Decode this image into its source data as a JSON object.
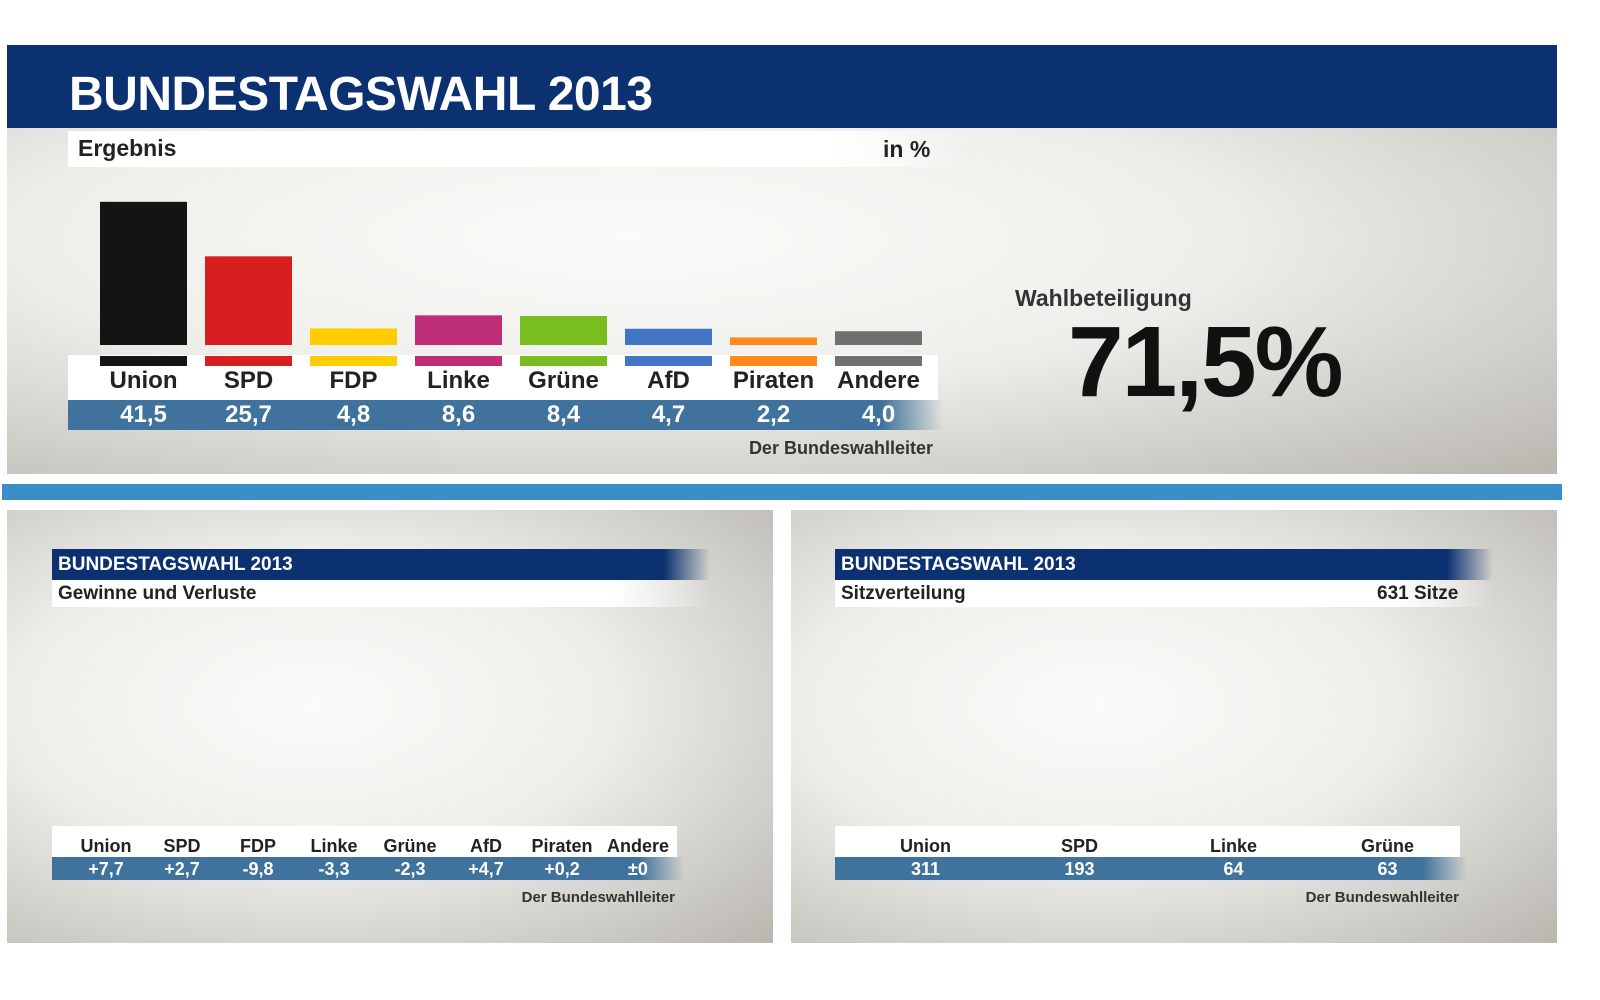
{
  "title": "BUNDESTAGSWAHL 2013",
  "source": "Der Bundeswahlleiter",
  "colors": {
    "Union": "#141414",
    "SPD": "#d81e1e",
    "FDP": "#ffcc00",
    "Linke": "#be2f78",
    "Grüne": "#78be1e",
    "AfD": "#4275c6",
    "Piraten": "#ff8a1a",
    "Andere": "#707070"
  },
  "turnout": {
    "label": "Wahlbeteiligung",
    "value": "71,5%"
  },
  "chart_data": [
    {
      "type": "bar",
      "title": "Ergebnis",
      "unit": "in %",
      "categories": [
        "Union",
        "SPD",
        "FDP",
        "Linke",
        "Grüne",
        "AfD",
        "Piraten",
        "Andere"
      ],
      "values": [
        41.5,
        25.7,
        4.8,
        8.6,
        8.4,
        4.7,
        2.2,
        4.0
      ],
      "labels": [
        "41,5",
        "25,7",
        "4,8",
        "8,6",
        "8,4",
        "4,7",
        "2,2",
        "4,0"
      ]
    },
    {
      "type": "bar",
      "title": "Gewinne und Verluste",
      "header": "BUNDESTAGSWAHL 2013",
      "categories": [
        "Union",
        "SPD",
        "FDP",
        "Linke",
        "Grüne",
        "AfD",
        "Piraten",
        "Andere"
      ],
      "values": [
        7.7,
        2.7,
        -9.8,
        -3.3,
        -2.3,
        4.7,
        0.2,
        0
      ],
      "labels": [
        "+7,7",
        "+2,7",
        "-9,8",
        "-3,3",
        "-2,3",
        "+4,7",
        "+0,2",
        "±0"
      ]
    },
    {
      "type": "pie",
      "subtype": "hemicycle",
      "title": "Sitzverteilung",
      "header": "BUNDESTAGSWAHL 2013",
      "total_label": "631 Sitze",
      "total": 631,
      "categories": [
        "Union",
        "SPD",
        "Linke",
        "Grüne"
      ],
      "values": [
        311,
        193,
        64,
        63
      ],
      "labels": [
        "311",
        "193",
        "64",
        "63"
      ]
    }
  ]
}
